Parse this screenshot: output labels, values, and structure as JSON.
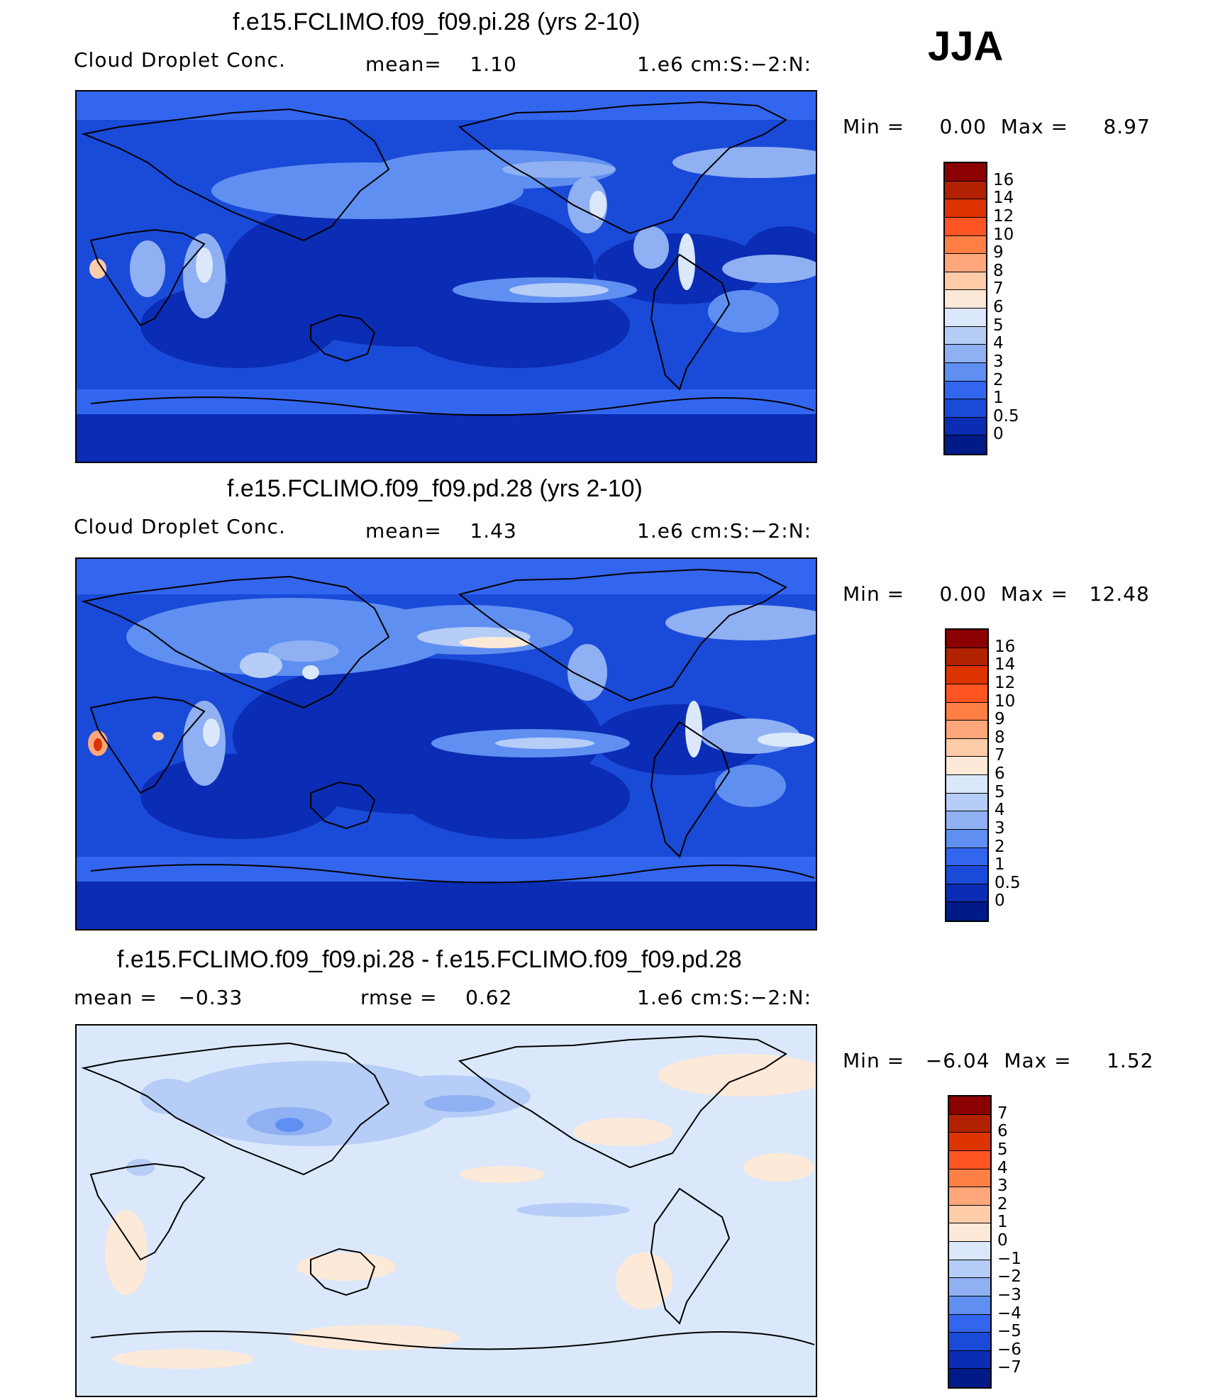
{
  "season": "JJA",
  "panels": [
    {
      "title": "f.e15.FCLIMO.f09_f09.pi.28 (yrs 2-10)",
      "left_label": "Cloud Droplet Conc.",
      "mid_label": "mean=    1.10",
      "units": "1.e6 cm:S:−2:N:",
      "minmax": "Min =     0.00  Max =     8.97",
      "colorbar": {
        "labels": [
          "16",
          "14",
          "12",
          "10",
          "9",
          "8",
          "7",
          "6",
          "5",
          "4",
          "3",
          "2",
          "1",
          "0.5",
          "0"
        ],
        "colors": [
          "#8b0000",
          "#b22200",
          "#dd3300",
          "#ff5522",
          "#ff7f45",
          "#ffa77a",
          "#ffccaa",
          "#fde9d8",
          "#dbe8fb",
          "#b5cdf7",
          "#8fb0f2",
          "#5f8ff0",
          "#3366ee",
          "#1a4ad8",
          "#0b2cb4",
          "#001a88"
        ]
      }
    },
    {
      "title": "f.e15.FCLIMO.f09_f09.pd.28 (yrs 2-10)",
      "left_label": "Cloud Droplet Conc.",
      "mid_label": "mean=    1.43",
      "units": "1.e6 cm:S:−2:N:",
      "minmax": "Min =     0.00  Max =   12.48",
      "colorbar": {
        "labels": [
          "16",
          "14",
          "12",
          "10",
          "9",
          "8",
          "7",
          "6",
          "5",
          "4",
          "3",
          "2",
          "1",
          "0.5",
          "0"
        ],
        "colors": [
          "#8b0000",
          "#b22200",
          "#dd3300",
          "#ff5522",
          "#ff7f45",
          "#ffa77a",
          "#ffccaa",
          "#fde9d8",
          "#dbe8fb",
          "#b5cdf7",
          "#8fb0f2",
          "#5f8ff0",
          "#3366ee",
          "#1a4ad8",
          "#0b2cb4",
          "#001a88"
        ]
      }
    },
    {
      "title": "f.e15.FCLIMO.f09_f09.pi.28 - f.e15.FCLIMO.f09_f09.pd.28",
      "left_label": "mean =   −0.33",
      "mid_label": "rmse =    0.62",
      "units": "1.e6 cm:S:−2:N:",
      "minmax": "Min =   −6.04  Max =     1.52",
      "colorbar": {
        "labels": [
          "7",
          "6",
          "5",
          "4",
          "3",
          "2",
          "1",
          "0",
          "−1",
          "−2",
          "−3",
          "−4",
          "−5",
          "−6",
          "−7"
        ],
        "colors": [
          "#8b0000",
          "#b22200",
          "#dd3300",
          "#ff5522",
          "#ff7f45",
          "#ffa77a",
          "#ffccaa",
          "#fde9d8",
          "#dbe8fb",
          "#b5cdf7",
          "#8fb0f2",
          "#5f8ff0",
          "#3366ee",
          "#1a4ad8",
          "#0b2cb4",
          "#001a88"
        ]
      }
    }
  ]
}
